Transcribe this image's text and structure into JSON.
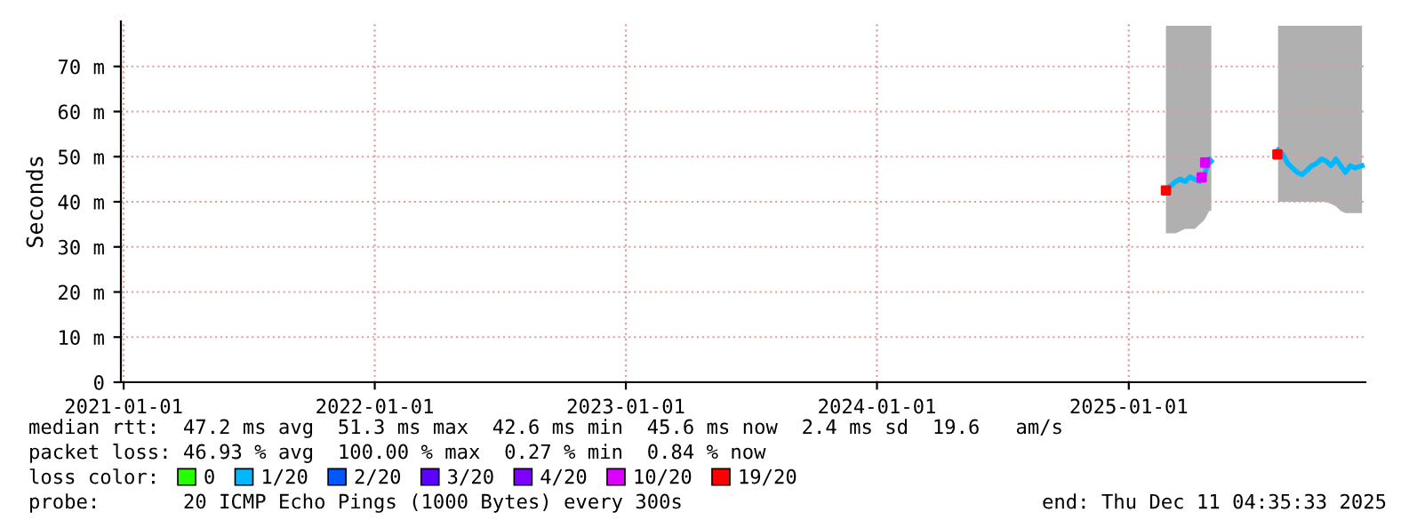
{
  "chart_data": {
    "type": "line",
    "ylabel": "Seconds",
    "ylim": [
      0,
      80
    ],
    "yticks": [
      0,
      {
        "value": 10,
        "label": "10 m"
      },
      {
        "value": 20,
        "label": "20 m"
      },
      {
        "value": 30,
        "label": "30 m"
      },
      {
        "value": 40,
        "label": "40 m"
      },
      {
        "value": 50,
        "label": "50 m"
      },
      {
        "value": 60,
        "label": "60 m"
      },
      {
        "value": 70,
        "label": "70 m"
      }
    ],
    "xlim": [
      "2020-12-28",
      "2025-12-11"
    ],
    "xticks": [
      {
        "value": "2021-01-01",
        "label": "2021-01-01"
      },
      {
        "value": "2022-01-01",
        "label": "2022-01-01"
      },
      {
        "value": "2023-01-01",
        "label": "2023-01-01"
      },
      {
        "value": "2024-01-01",
        "label": "2024-01-01"
      },
      {
        "value": "2025-01-01",
        "label": "2025-01-01"
      }
    ],
    "grid": true,
    "legend": "bottom",
    "legend_title": "loss color:",
    "series": [
      {
        "name": "0",
        "color": "#26ff00",
        "type": "scatter"
      },
      {
        "name": "1/20",
        "color": "#00b8ff",
        "x": [
          "2025-02-24",
          "2025-03-03",
          "2025-03-10",
          "2025-03-17",
          "2025-03-24",
          "2025-03-31",
          "2025-04-07",
          "2025-04-14",
          "2025-04-21",
          "2025-04-28",
          "2025-05-01",
          "2025-06-15",
          "2025-08-06",
          "2025-08-13",
          "2025-08-20",
          "2025-08-27",
          "2025-09-03",
          "2025-09-10",
          "2025-09-17",
          "2025-09-24",
          "2025-10-01",
          "2025-10-08",
          "2025-10-15",
          "2025-10-22",
          "2025-10-29",
          "2025-11-05",
          "2025-11-12",
          "2025-11-19",
          "2025-11-26",
          "2025-12-06"
        ],
        "values": [
          42.8,
          43.5,
          44.5,
          45,
          44.5,
          45.5,
          45,
          44.5,
          46,
          49.5,
          49,
          null,
          51.5,
          50.5,
          48.5,
          47.5,
          46.5,
          46,
          47,
          48,
          48.5,
          49.5,
          49,
          48,
          49.5,
          48,
          46.5,
          48,
          47.5,
          48
        ],
        "lower": [
          33,
          33,
          33,
          33.5,
          34,
          34,
          34,
          35,
          36,
          38,
          38,
          null,
          40,
          40,
          40,
          40,
          40,
          40,
          40,
          40,
          40,
          40,
          40,
          39.5,
          39,
          38,
          37.5,
          37.5,
          37.5,
          37.5
        ],
        "upper": [
          79,
          79,
          79,
          79,
          79,
          79,
          79,
          79,
          79,
          79,
          79,
          null,
          79,
          79,
          79,
          79,
          79,
          79,
          79,
          79,
          79,
          79,
          79,
          79,
          79,
          79,
          79,
          79,
          79,
          79
        ]
      },
      {
        "name": "2/20",
        "color": "#0059ff",
        "type": "scatter"
      },
      {
        "name": "3/20",
        "color": "#5e00ff",
        "type": "scatter"
      },
      {
        "name": "4/20",
        "color": "#7e00ff",
        "type": "scatter"
      },
      {
        "name": "10/20",
        "color": "#dd00ff",
        "type": "scatter",
        "x": [
          "2025-04-17",
          "2025-04-22"
        ],
        "values": [
          45.4,
          48.7
        ]
      },
      {
        "name": "19/20",
        "color": "#ff0000",
        "type": "scatter",
        "x": [
          "2025-02-24",
          "2025-08-05"
        ],
        "values": [
          42.5,
          50.5
        ]
      }
    ],
    "annotations": [
      "median rtt:  47.2 ms avg  51.3 ms max  42.6 ms min  45.6 ms now  2.4 ms sd  19.6   am/s",
      "packet loss: 46.93 % avg  100.00 % max  0.27 % min  0.84 % now",
      "probe:       20 ICMP Echo Pings (1000 Bytes) every 300s",
      "end: Thu Dec 11 04:35:33 2025"
    ]
  }
}
